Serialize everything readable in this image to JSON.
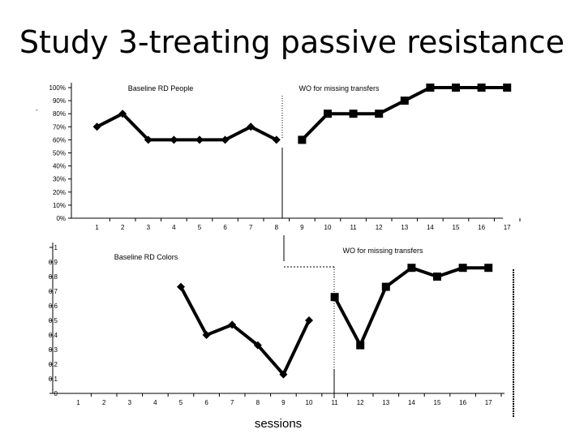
{
  "title": "Study 3-treating passive resistance",
  "chart_data": [
    {
      "type": "line",
      "name": "top",
      "categories": [
        "1",
        "2",
        "3",
        "4",
        "5",
        "6",
        "7",
        "8",
        "9",
        "10",
        "11",
        "12",
        "13",
        "14",
        "15",
        "16",
        "17"
      ],
      "ytick_labels": [
        "0%",
        "10%",
        "20%",
        "30%",
        "40%",
        "50%",
        "60%",
        "70%",
        "80%",
        "90%",
        "100%"
      ],
      "ylim": [
        0,
        100
      ],
      "series": [
        {
          "name": "Baseline RD People",
          "marker": "diamond",
          "x": [
            1,
            2,
            3,
            4,
            5,
            6,
            7,
            8
          ],
          "values": [
            70,
            80,
            60,
            60,
            60,
            60,
            70,
            60
          ]
        },
        {
          "name": "WO for missing transfers",
          "marker": "square",
          "x": [
            9,
            10,
            11,
            12,
            13,
            14,
            15,
            16,
            17
          ],
          "values": [
            60,
            80,
            80,
            80,
            90,
            100,
            100,
            100,
            100
          ]
        }
      ],
      "phase_labels": [
        "Baseline RD People",
        "WO for missing transfers"
      ],
      "phase_line_after": 8.5,
      "stray_mark": "-"
    },
    {
      "type": "line",
      "name": "bottom",
      "categories": [
        "1",
        "2",
        "3",
        "4",
        "5",
        "6",
        "7",
        "8",
        "9",
        "10",
        "11",
        "12",
        "13",
        "14",
        "15",
        "16",
        "17"
      ],
      "ytick_labels": [
        "0",
        "0.1",
        "0.2",
        "0.3",
        "0.4",
        "0.5",
        "0.6",
        "0.7",
        "0.8",
        "0.9",
        "1"
      ],
      "ylim": [
        0,
        1
      ],
      "xlabel": "sessions",
      "series": [
        {
          "name": "Baseline RD Colors",
          "marker": "diamond",
          "x": [
            5,
            6,
            7,
            8,
            9,
            10
          ],
          "values": [
            0.73,
            0.4,
            0.47,
            0.33,
            0.13,
            0.5
          ]
        },
        {
          "name": "WO for missing transfers",
          "marker": "square",
          "x": [
            11,
            12,
            13,
            14,
            15,
            16,
            17
          ],
          "values": [
            0.66,
            0.33,
            0.73,
            0.86,
            0.8,
            0.86,
            0.86
          ]
        }
      ],
      "phase_labels": [
        "Baseline RD Colors",
        "WO for missing transfers"
      ]
    }
  ]
}
